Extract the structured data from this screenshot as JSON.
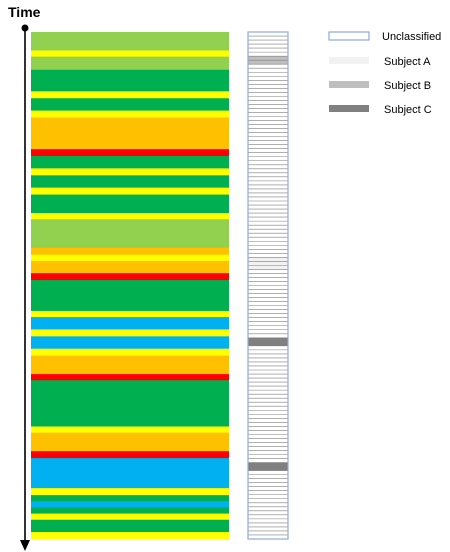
{
  "axis": {
    "label": "Time"
  },
  "colors": {
    "light_green": "#92d050",
    "yellow": "#ffff00",
    "green": "#00b050",
    "orange": "#ffc000",
    "red": "#ff0000",
    "blue": "#00b0f0",
    "unclassified_border": "#8eaadb",
    "row_line": "#7f7f7f",
    "subject_a": "#f2f2f2",
    "subject_b": "#bfbfbf",
    "subject_c": "#808080"
  },
  "legend": [
    {
      "key": "unclassified",
      "label": "Unclassified"
    },
    {
      "key": "subject_a",
      "label": "Subject A"
    },
    {
      "key": "subject_b",
      "label": "Subject B"
    },
    {
      "key": "subject_c",
      "label": "Subject C"
    }
  ],
  "timeline_bands": [
    {
      "color": "light_green",
      "units": 2.4
    },
    {
      "color": "yellow",
      "units": 0.8
    },
    {
      "color": "light_green",
      "units": 1.7
    },
    {
      "color": "green",
      "units": 2.8
    },
    {
      "color": "yellow",
      "units": 0.9
    },
    {
      "color": "green",
      "units": 1.6
    },
    {
      "color": "yellow",
      "units": 0.9
    },
    {
      "color": "orange",
      "units": 4.1
    },
    {
      "color": "red",
      "units": 0.9
    },
    {
      "color": "green",
      "units": 1.6
    },
    {
      "color": "yellow",
      "units": 0.9
    },
    {
      "color": "green",
      "units": 1.6
    },
    {
      "color": "yellow",
      "units": 0.9
    },
    {
      "color": "green",
      "units": 2.4
    },
    {
      "color": "yellow",
      "units": 0.8
    },
    {
      "color": "light_green",
      "units": 3.7
    },
    {
      "color": "orange",
      "units": 0.9
    },
    {
      "color": "yellow",
      "units": 0.8
    },
    {
      "color": "orange",
      "units": 1.6
    },
    {
      "color": "red",
      "units": 0.9
    },
    {
      "color": "green",
      "units": 4.0
    },
    {
      "color": "yellow",
      "units": 0.8
    },
    {
      "color": "blue",
      "units": 1.6
    },
    {
      "color": "yellow",
      "units": 0.9
    },
    {
      "color": "blue",
      "units": 1.6
    },
    {
      "color": "yellow",
      "units": 0.9
    },
    {
      "color": "orange",
      "units": 2.4
    },
    {
      "color": "red",
      "units": 0.8
    },
    {
      "color": "green",
      "units": 6.0
    },
    {
      "color": "yellow",
      "units": 0.8
    },
    {
      "color": "orange",
      "units": 2.4
    },
    {
      "color": "red",
      "units": 0.9
    },
    {
      "color": "blue",
      "units": 3.9
    },
    {
      "color": "yellow",
      "units": 0.9
    },
    {
      "color": "green",
      "units": 0.8
    },
    {
      "color": "blue",
      "units": 0.8
    },
    {
      "color": "green",
      "units": 0.8
    },
    {
      "color": "yellow",
      "units": 0.8
    },
    {
      "color": "green",
      "units": 1.6
    },
    {
      "color": "yellow",
      "units": 0.9
    }
  ],
  "classification_rows": {
    "count": 126,
    "highlights": [
      {
        "subject": "subject_b",
        "from_row": 6,
        "to_row": 7
      },
      {
        "subject": "subject_a",
        "from_row": 56,
        "to_row": 58
      },
      {
        "subject": "subject_c",
        "from_row": 76,
        "to_row": 77
      },
      {
        "subject": "subject_c",
        "from_row": 107,
        "to_row": 108
      }
    ]
  }
}
